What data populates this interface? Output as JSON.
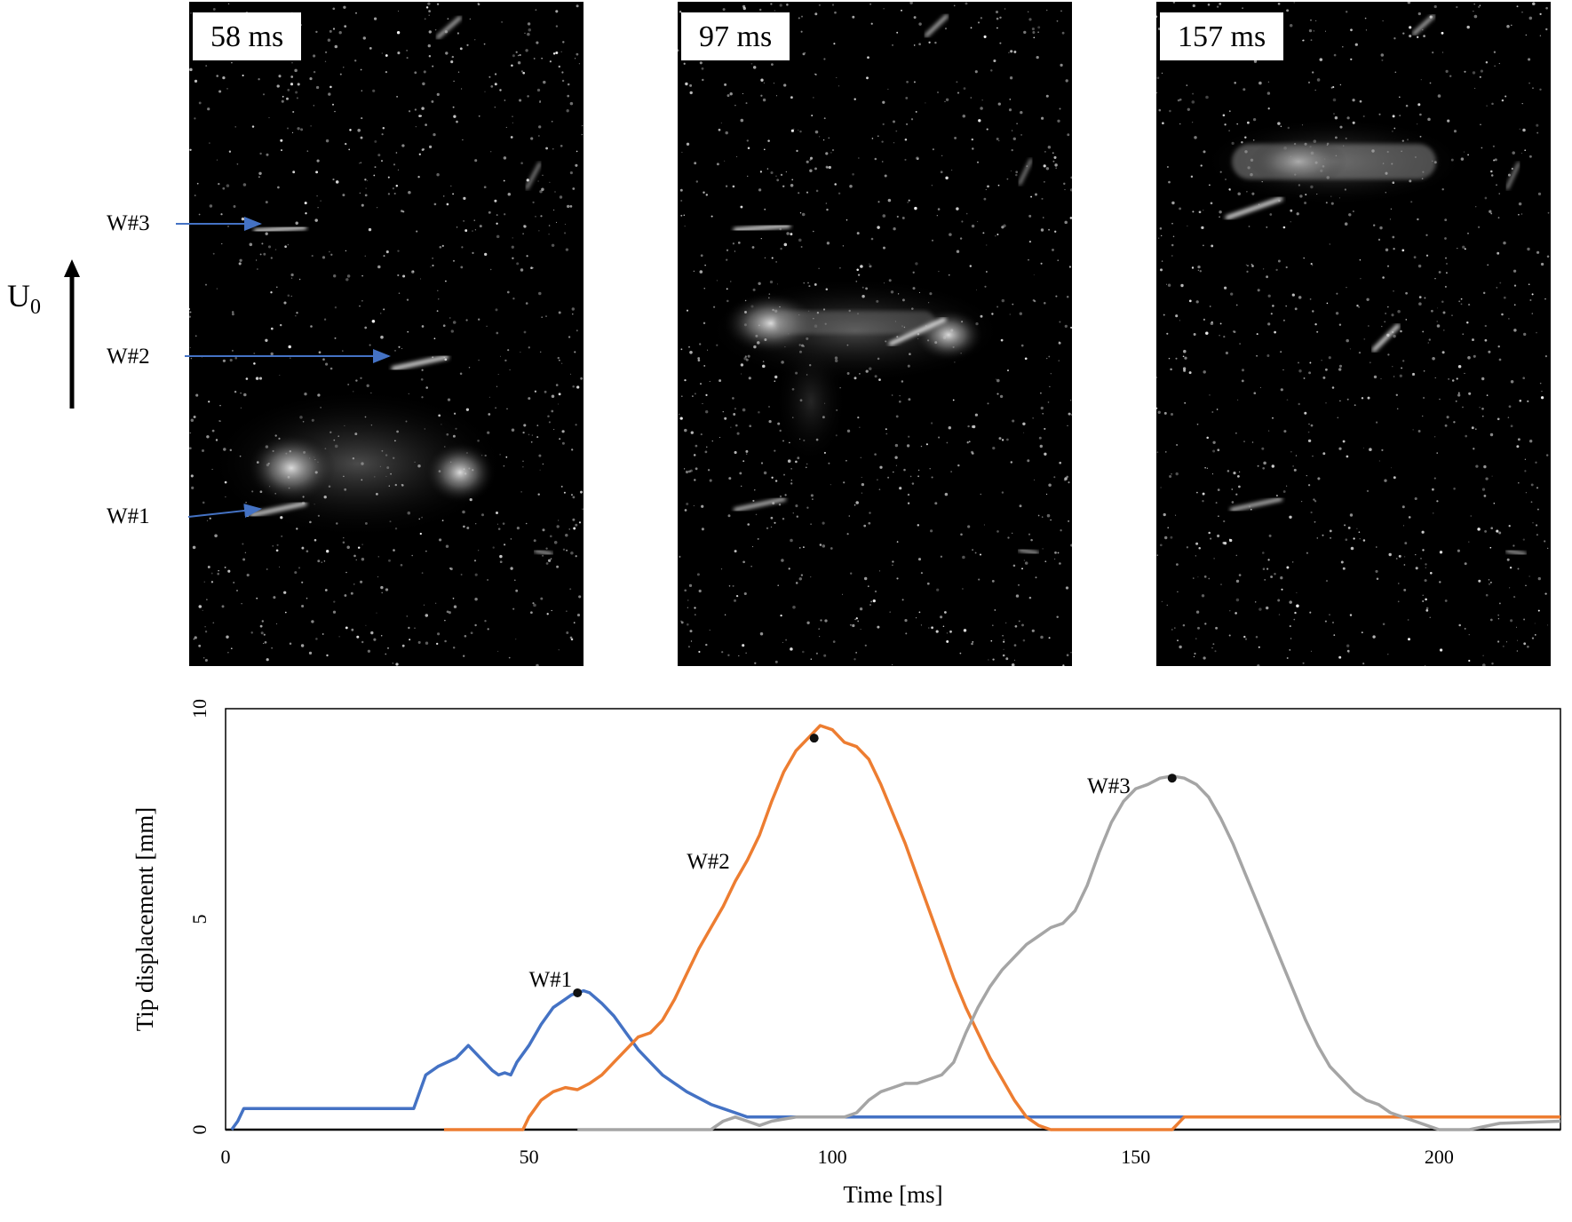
{
  "figure": {
    "panels": [
      {
        "label": "58 ms"
      },
      {
        "label": "97 ms"
      },
      {
        "label": "157 ms"
      }
    ],
    "flow_label": "U",
    "flow_subscript": "0",
    "wire_labels": [
      "W#1",
      "W#2",
      "W#3"
    ]
  },
  "chart_data": {
    "type": "line",
    "title": "",
    "xlabel": "Time  [ms]",
    "ylabel": "Tip displacement  [mm]",
    "xlim": [
      0,
      220
    ],
    "ylim": [
      0,
      10
    ],
    "xticks": [
      0,
      50,
      100,
      150,
      200
    ],
    "yticks": [
      0,
      5,
      10
    ],
    "series": [
      {
        "name": "W#1",
        "color": "#4472c4",
        "x": [
          1,
          2,
          3,
          10,
          20,
          31,
          32,
          33,
          35,
          38,
          40,
          42,
          44,
          45,
          46,
          47,
          48,
          50,
          52,
          54,
          56,
          57,
          58,
          59,
          60,
          62,
          64,
          66,
          68,
          70,
          72,
          74,
          76,
          78,
          80,
          82,
          84,
          86,
          90,
          100,
          120,
          140,
          160,
          180,
          200,
          220
        ],
        "y": [
          0,
          0.2,
          0.5,
          0.5,
          0.5,
          0.5,
          0.9,
          1.3,
          1.5,
          1.7,
          2.0,
          1.7,
          1.4,
          1.3,
          1.35,
          1.3,
          1.6,
          2.0,
          2.5,
          2.9,
          3.1,
          3.2,
          3.25,
          3.3,
          3.25,
          3.0,
          2.7,
          2.3,
          1.9,
          1.6,
          1.3,
          1.1,
          0.9,
          0.75,
          0.6,
          0.5,
          0.4,
          0.3,
          0.3,
          0.3,
          0.3,
          0.3,
          0.3,
          0.3,
          0.3,
          0.3
        ],
        "annotations": [
          {
            "label": "W#1",
            "x": 50,
            "y": 3.4
          }
        ],
        "marker": {
          "x": 58,
          "y": 3.25
        }
      },
      {
        "name": "W#2",
        "color": "#ed7d31",
        "x": [
          36,
          45,
          49,
          50,
          52,
          54,
          56,
          58,
          60,
          62,
          64,
          66,
          68,
          70,
          72,
          74,
          76,
          78,
          80,
          82,
          84,
          86,
          88,
          90,
          92,
          94,
          96,
          98,
          100,
          102,
          104,
          106,
          108,
          110,
          112,
          114,
          116,
          118,
          120,
          122,
          124,
          126,
          128,
          130,
          132,
          134,
          136,
          138,
          140,
          150,
          156,
          157,
          158,
          170,
          190,
          220
        ],
        "y": [
          0,
          0,
          0,
          0.3,
          0.7,
          0.9,
          1.0,
          0.95,
          1.1,
          1.3,
          1.6,
          1.9,
          2.2,
          2.3,
          2.6,
          3.1,
          3.7,
          4.3,
          4.8,
          5.3,
          5.9,
          6.4,
          7.0,
          7.8,
          8.5,
          9.0,
          9.3,
          9.6,
          9.5,
          9.2,
          9.1,
          8.8,
          8.2,
          7.5,
          6.8,
          6.0,
          5.2,
          4.4,
          3.6,
          2.9,
          2.3,
          1.7,
          1.2,
          0.7,
          0.3,
          0.1,
          0,
          0,
          0,
          0,
          0,
          0.15,
          0.3,
          0.3,
          0.3,
          0.3
        ],
        "annotations": [
          {
            "label": "W#2",
            "x": 76,
            "y": 6.2
          }
        ],
        "marker": {
          "x": 97,
          "y": 9.3
        }
      },
      {
        "name": "W#3",
        "color": "#a5a5a5",
        "x": [
          58,
          62,
          80,
          82,
          84,
          86,
          88,
          90,
          94,
          98,
          100,
          102,
          104,
          106,
          108,
          110,
          112,
          114,
          116,
          118,
          120,
          122,
          124,
          126,
          128,
          130,
          132,
          134,
          136,
          138,
          140,
          142,
          144,
          146,
          148,
          150,
          152,
          154,
          156,
          158,
          160,
          162,
          164,
          166,
          168,
          170,
          172,
          174,
          176,
          178,
          180,
          182,
          184,
          186,
          188,
          190,
          192,
          194,
          196,
          198,
          200,
          205,
          210,
          220
        ],
        "y": [
          0,
          0,
          0,
          0.2,
          0.3,
          0.2,
          0.1,
          0.2,
          0.3,
          0.3,
          0.3,
          0.3,
          0.4,
          0.7,
          0.9,
          1.0,
          1.1,
          1.1,
          1.2,
          1.3,
          1.6,
          2.3,
          2.9,
          3.4,
          3.8,
          4.1,
          4.4,
          4.6,
          4.8,
          4.9,
          5.2,
          5.8,
          6.6,
          7.3,
          7.8,
          8.1,
          8.2,
          8.35,
          8.4,
          8.35,
          8.2,
          7.9,
          7.4,
          6.8,
          6.1,
          5.4,
          4.7,
          4.0,
          3.3,
          2.6,
          2.0,
          1.5,
          1.2,
          0.9,
          0.7,
          0.6,
          0.4,
          0.3,
          0.2,
          0.1,
          0,
          0,
          0.15,
          0.2
        ],
        "annotations": [
          {
            "label": "W#3",
            "x": 142,
            "y": 8.0
          }
        ],
        "marker": {
          "x": 156,
          "y": 8.35
        }
      }
    ]
  }
}
